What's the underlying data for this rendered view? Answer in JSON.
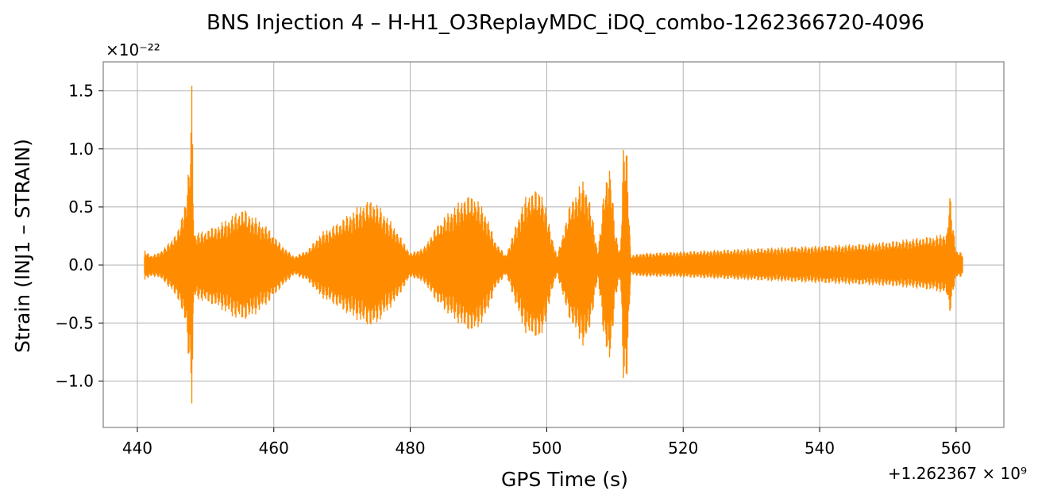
{
  "chart_data": {
    "type": "line",
    "title": "BNS Injection 4 – H-H1_O3ReplayMDC_iDQ_combo-1262366720-4096",
    "xlabel": "GPS Time (s)",
    "ylabel": "Strain (INJ1 – STRAIN)",
    "x_offset_label": "+1.262367 × 10⁹",
    "y_scale_label": "×10⁻²²",
    "xlim": [
      435,
      567
    ],
    "ylim": [
      -1.4,
      1.75
    ],
    "x_ticks": [
      440,
      460,
      480,
      500,
      520,
      540,
      560
    ],
    "x_tick_labels": [
      "440",
      "460",
      "480",
      "500",
      "520",
      "540",
      "560"
    ],
    "y_ticks": [
      -1.0,
      -0.5,
      0.0,
      0.5,
      1.0,
      1.5
    ],
    "y_tick_labels": [
      "−1.0",
      "−0.5",
      "0.0",
      "0.5",
      "1.0",
      "1.5"
    ],
    "grid": true,
    "color": "#ff8c00",
    "series": [
      {
        "x": [
          441,
          442,
          443,
          444,
          445,
          446,
          447,
          447.6,
          448,
          448.3,
          449,
          450,
          452,
          454,
          455.5,
          457,
          459,
          461,
          463,
          465,
          467,
          469,
          471,
          473,
          474.5,
          476,
          478,
          480,
          482,
          484,
          486,
          488,
          489.3,
          491,
          492.5,
          494,
          495,
          496,
          497,
          498,
          499.3,
          500.5,
          501.5,
          502.5,
          503.5,
          504.5,
          505.5,
          506.5,
          507.5,
          508.5,
          509.3,
          510,
          510.8,
          511.3,
          511.8,
          512.3,
          514,
          518,
          522,
          526,
          530,
          534,
          538,
          542,
          546,
          550,
          554,
          557,
          558.7,
          559,
          560,
          561
        ],
        "upper": [
          0.13,
          0.08,
          0.1,
          0.15,
          0.22,
          0.3,
          0.55,
          0.85,
          1.62,
          0.28,
          0.28,
          0.3,
          0.35,
          0.43,
          0.49,
          0.42,
          0.33,
          0.18,
          0.07,
          0.13,
          0.28,
          0.35,
          0.44,
          0.53,
          0.57,
          0.47,
          0.3,
          0.1,
          0.15,
          0.35,
          0.48,
          0.59,
          0.61,
          0.46,
          0.2,
          0.08,
          0.25,
          0.45,
          0.6,
          0.65,
          0.64,
          0.32,
          0.07,
          0.3,
          0.55,
          0.65,
          0.75,
          0.5,
          0.1,
          0.7,
          0.89,
          0.3,
          0.1,
          1.13,
          0.95,
          0.08,
          0.1,
          0.11,
          0.12,
          0.13,
          0.14,
          0.15,
          0.16,
          0.17,
          0.18,
          0.2,
          0.23,
          0.25,
          0.28,
          0.66,
          0.12,
          0.1
        ],
        "lower": [
          -0.13,
          -0.1,
          -0.1,
          -0.15,
          -0.22,
          -0.3,
          -0.5,
          -0.85,
          -1.24,
          -0.28,
          -0.3,
          -0.32,
          -0.37,
          -0.45,
          -0.48,
          -0.44,
          -0.34,
          -0.2,
          -0.08,
          -0.14,
          -0.28,
          -0.35,
          -0.43,
          -0.5,
          -0.54,
          -0.45,
          -0.3,
          -0.1,
          -0.15,
          -0.33,
          -0.45,
          -0.55,
          -0.59,
          -0.46,
          -0.2,
          -0.08,
          -0.25,
          -0.45,
          -0.6,
          -0.62,
          -0.64,
          -0.3,
          -0.07,
          -0.3,
          -0.5,
          -0.6,
          -0.73,
          -0.5,
          -0.1,
          -0.7,
          -0.87,
          -0.3,
          -0.1,
          -1.11,
          -0.95,
          -0.08,
          -0.1,
          -0.1,
          -0.11,
          -0.12,
          -0.13,
          -0.14,
          -0.15,
          -0.16,
          -0.17,
          -0.18,
          -0.2,
          -0.22,
          -0.26,
          -0.45,
          -0.1,
          -0.1
        ]
      }
    ]
  }
}
